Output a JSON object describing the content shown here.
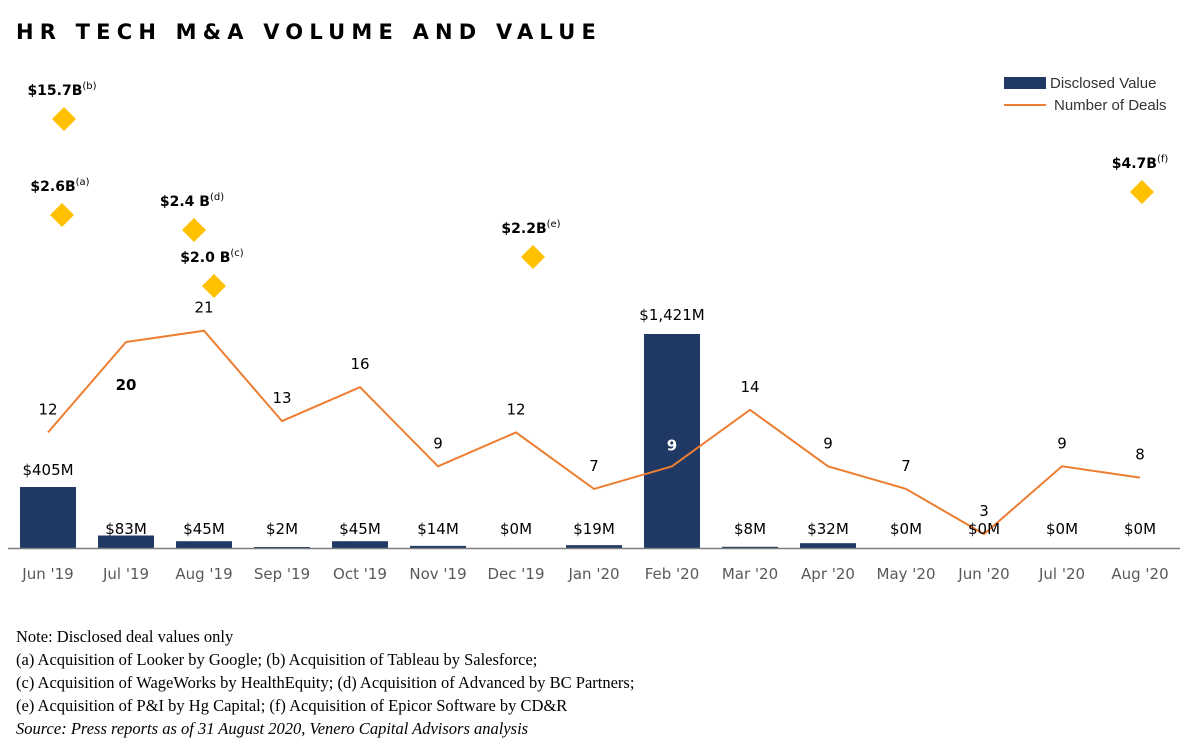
{
  "title": "HR TECH M&A VOLUME AND VALUE",
  "legend": {
    "bar_label": "Disclosed Value",
    "line_label": "Number of Deals"
  },
  "colors": {
    "bar": "#203864",
    "line": "#ED7D31",
    "marker": "#FFC000",
    "axis": "#7F7F7F"
  },
  "chart_data": {
    "type": "bar",
    "title": "HR TECH M&A VOLUME AND VALUE",
    "categories": [
      "Jun '19",
      "Jul '19",
      "Aug '19",
      "Sep '19",
      "Oct '19",
      "Nov '19",
      "Dec '19",
      "Jan '20",
      "Feb '20",
      "Mar '20",
      "Apr '20",
      "May '20",
      "Jun '20",
      "Jul '20",
      "Aug '20"
    ],
    "series": [
      {
        "name": "Disclosed Value",
        "type": "bar",
        "unit": "$M",
        "values": [
          405,
          83,
          45,
          2,
          45,
          14,
          0,
          19,
          1421,
          8,
          32,
          0,
          0,
          0,
          0
        ],
        "labels": [
          "$405M",
          "$83M",
          "$45M",
          "$2M",
          "$45M",
          "$14M",
          "$0M",
          "$19M",
          "$1,421M",
          "$8M",
          "$32M",
          "$0M",
          "$0M",
          "$0M",
          "$0M"
        ]
      },
      {
        "name": "Number of Deals",
        "type": "line",
        "values": [
          12,
          20,
          21,
          13,
          16,
          9,
          12,
          7,
          9,
          14,
          9,
          7,
          3,
          9,
          8
        ]
      }
    ],
    "annotations": [
      {
        "category": "Jun '19",
        "value_label": "$15.7B",
        "note": "(b)"
      },
      {
        "category": "Jun '19",
        "value_label": "$2.6B",
        "note": "(a)"
      },
      {
        "category": "Aug '19",
        "value_label": "$2.4 B",
        "note": "(d)"
      },
      {
        "category": "Aug '19",
        "value_label": "$2.0 B",
        "note": "(c)"
      },
      {
        "category": "Dec '19",
        "value_label": "$2.2B",
        "note": "(e)"
      },
      {
        "category": "Aug '20",
        "value_label": "$4.7B",
        "note": "(f)"
      }
    ],
    "legend_position": "top-right",
    "grid": false
  },
  "footnotes": {
    "note": "Note: Disclosed deal values only",
    "line_a_b": "(a) Acquisition of Looker by Google; (b) Acquisition of Tableau by Salesforce;",
    "line_c_d": "(c) Acquisition of WageWorks by HealthEquity; (d) Acquisition of Advanced by BC Partners;",
    "line_e_f": "(e) Acquisition of P&I by Hg Capital; (f) Acquisition of Epicor Software by CD&R",
    "source": "Source: Press reports as of 31 August 2020, Venero Capital Advisors analysis"
  }
}
